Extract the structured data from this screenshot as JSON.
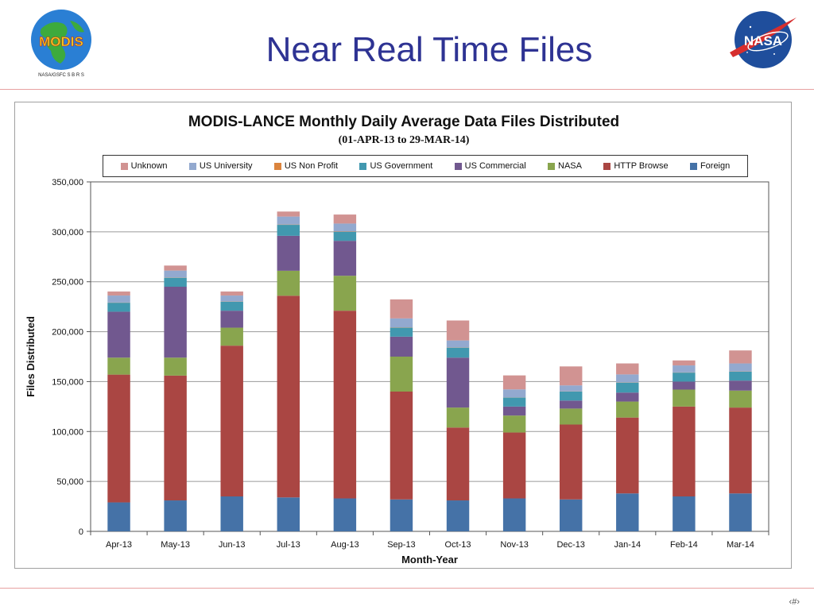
{
  "slide": {
    "title": "Near Real Time Files",
    "page_marker": "‹#›",
    "modis_logo_text": "MODIS",
    "modis_logo_subtext": "NASA/GSFC  S B R S",
    "nasa_logo_text": "NASA"
  },
  "chart_data": {
    "type": "bar",
    "stacked": true,
    "title": "MODIS-LANCE Monthly Daily Average Data Files Distributed",
    "subtitle": "(01-APR-13 to 29-MAR-14)",
    "xlabel": "Month-Year",
    "ylabel": "Files Distributed",
    "ylim": [
      0,
      350000
    ],
    "yticks": [
      0,
      50000,
      100000,
      150000,
      200000,
      250000,
      300000,
      350000
    ],
    "ytick_labels": [
      "0",
      "50,000",
      "100,000",
      "150,000",
      "200,000",
      "250,000",
      "300,000",
      "350,000"
    ],
    "grid": true,
    "legend_position": "top",
    "categories": [
      "Apr-13",
      "May-13",
      "Jun-13",
      "Jul-13",
      "Aug-13",
      "Sep-13",
      "Oct-13",
      "Nov-13",
      "Dec-13",
      "Jan-14",
      "Feb-14",
      "Mar-14"
    ],
    "legend_order": [
      "Unknown",
      "US University",
      "US Non Profit",
      "US Government",
      "US Commercial",
      "NASA",
      "HTTP Browse",
      "Foreign"
    ],
    "series": [
      {
        "name": "Foreign",
        "color": "#4572A7",
        "values": [
          29000,
          31000,
          35000,
          34000,
          33000,
          32000,
          31000,
          33000,
          32000,
          38000,
          35000,
          38000
        ]
      },
      {
        "name": "HTTP Browse",
        "color": "#AA4643",
        "values": [
          128000,
          125000,
          151000,
          202000,
          188000,
          108000,
          73000,
          66000,
          75000,
          76000,
          90000,
          86000
        ]
      },
      {
        "name": "NASA",
        "color": "#89A54E",
        "values": [
          17000,
          18000,
          18000,
          25000,
          35000,
          35000,
          20000,
          17000,
          16000,
          16000,
          17000,
          17000
        ]
      },
      {
        "name": "US Commercial",
        "color": "#71588F",
        "values": [
          46000,
          71000,
          17000,
          35000,
          35000,
          20000,
          50000,
          9000,
          8000,
          9000,
          8000,
          10000
        ]
      },
      {
        "name": "US Government",
        "color": "#4198AF",
        "values": [
          9000,
          9000,
          9000,
          11000,
          9000,
          9000,
          10000,
          9000,
          9000,
          10000,
          9000,
          9000
        ]
      },
      {
        "name": "US Non Profit",
        "color": "#DB843D",
        "values": [
          200,
          200,
          200,
          300,
          300,
          300,
          200,
          200,
          200,
          200,
          200,
          200
        ]
      },
      {
        "name": "US University",
        "color": "#93A9CF",
        "values": [
          7000,
          7000,
          6000,
          8000,
          8000,
          9000,
          7000,
          8000,
          6000,
          8000,
          7000,
          8000
        ]
      },
      {
        "name": "Unknown",
        "color": "#D19392",
        "values": [
          4000,
          5000,
          4000,
          5000,
          9000,
          19000,
          20000,
          14000,
          19000,
          11000,
          5000,
          13000
        ]
      }
    ]
  }
}
